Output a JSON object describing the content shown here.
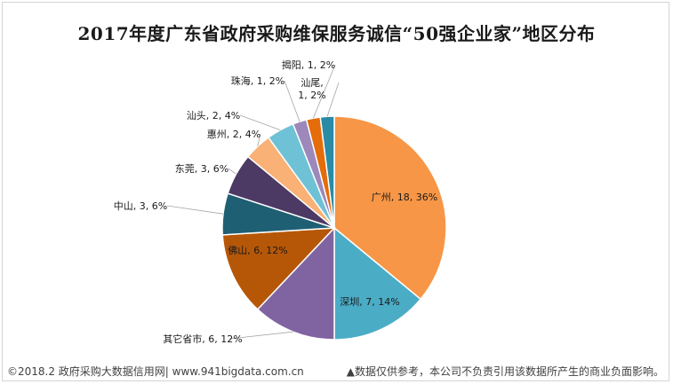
{
  "chart_data": {
    "type": "pie",
    "title": "2017年度广东省政府采购维保服务诚信“50强企业家”地区分布",
    "slices": [
      {
        "name": "广州",
        "value": 18,
        "percent": "36%",
        "color": "#F79646"
      },
      {
        "name": "深圳",
        "value": 7,
        "percent": "14%",
        "color": "#4BACC6"
      },
      {
        "name": "其它省市",
        "value": 6,
        "percent": "12%",
        "color": "#8064A2"
      },
      {
        "name": "佛山",
        "value": 6,
        "percent": "12%",
        "color": "#B65708"
      },
      {
        "name": "中山",
        "value": 3,
        "percent": "6%",
        "color": "#1F5F73"
      },
      {
        "name": "东莞",
        "value": 3,
        "percent": "6%",
        "color": "#4C3A64"
      },
      {
        "name": "惠州",
        "value": 2,
        "percent": "4%",
        "color": "#F9B175"
      },
      {
        "name": "汕头",
        "value": 2,
        "percent": "4%",
        "color": "#6FC2D6"
      },
      {
        "name": "珠海",
        "value": 1,
        "percent": "2%",
        "color": "#9C88BB"
      },
      {
        "name": "揭阳",
        "value": 1,
        "percent": "2%",
        "color": "#E46C0A"
      },
      {
        "name": "汕尾",
        "value": 1,
        "percent": "2%",
        "color": "#2A8BA6"
      }
    ]
  },
  "footer": {
    "source": "©2018.2 政府采购大数据信用网| www.941bigdata.com.cn",
    "disclaimer": "▲数据仅供参考，本公司不负责引用该数据所产生的商业负面影响。"
  }
}
